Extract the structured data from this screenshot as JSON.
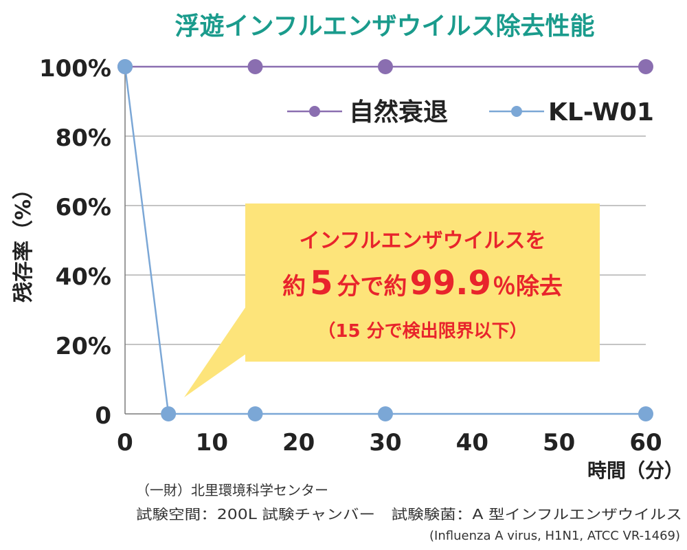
{
  "chart_data": {
    "type": "line",
    "title": "浮遊インフルエンザウイルス除去性能",
    "xlabel": "時間（分）",
    "ylabel": "残存率（%）",
    "xlim": [
      0,
      60
    ],
    "ylim": [
      0,
      100
    ],
    "x_ticks": [
      0,
      10,
      20,
      30,
      40,
      50,
      60
    ],
    "y_ticks": [
      {
        "value": 0,
        "label": "0"
      },
      {
        "value": 20,
        "label": "20%"
      },
      {
        "value": 40,
        "label": "40%"
      },
      {
        "value": 60,
        "label": "60%"
      },
      {
        "value": 80,
        "label": "80%"
      },
      {
        "value": 100,
        "label": "100%"
      }
    ],
    "grid": "horizontal",
    "legend_position": "top-right",
    "series": [
      {
        "name": "自然衰退",
        "color": "#8a6eb0",
        "points": [
          {
            "x": 0,
            "y": 100
          },
          {
            "x": 15,
            "y": 100
          },
          {
            "x": 30,
            "y": 100
          },
          {
            "x": 60,
            "y": 100
          }
        ]
      },
      {
        "name": "KL-W01",
        "color": "#7ba7d6",
        "points": [
          {
            "x": 0,
            "y": 100
          },
          {
            "x": 5,
            "y": 0
          },
          {
            "x": 15,
            "y": 0
          },
          {
            "x": 30,
            "y": 0
          },
          {
            "x": 60,
            "y": 0
          }
        ]
      }
    ],
    "annotation": {
      "line1": "インフルエンザウイルスを",
      "line2_prefix": "約",
      "line2_num1": "5",
      "line2_mid": "分で約",
      "line2_num2": "99.9",
      "line2_suffix": "％除去",
      "line3": "（15 分で検出限界以下）",
      "box_color": "#fde47a",
      "text_color": "#e8242c"
    }
  },
  "footnotes": {
    "line1": "（一財）北里環境科学センター",
    "line2": "試験空間：200L 試験チャンバー　試験験菌：A 型インフルエンザウイルス",
    "line3": "(Influenza A virus, H1N1, ATCC VR-1469)"
  },
  "colors": {
    "title": "#1a9b8c",
    "axis_text": "#222222",
    "grid": "#a0a0a0",
    "axis": "#7a7a7a"
  }
}
